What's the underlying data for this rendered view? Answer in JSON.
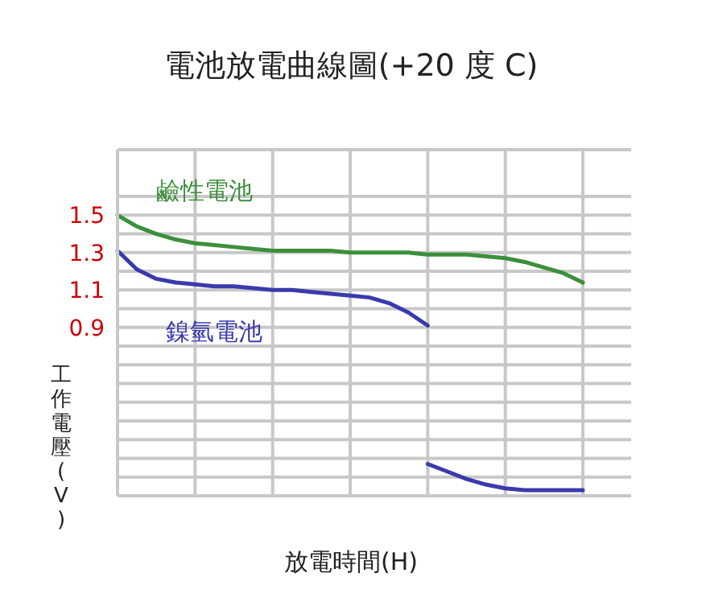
{
  "chart_data": {
    "type": "line",
    "title": "電池放電曲線圖(+20 度 C)",
    "xlabel": "放電時間(H)",
    "ylabel": "工作電壓(V)",
    "categories": [
      null,
      null,
      null,
      null,
      null,
      null,
      null,
      null,
      null,
      null,
      null,
      null,
      null,
      null,
      null,
      null,
      null,
      null,
      null,
      null,
      null,
      null,
      null,
      null,
      null
    ],
    "ylim": [
      0,
      1.85
    ],
    "yticks": [
      {
        "value": 0,
        "label": null
      },
      {
        "value": 0.1,
        "label": null
      },
      {
        "value": 0.2,
        "label": null
      },
      {
        "value": 0.3,
        "label": null
      },
      {
        "value": 0.4,
        "label": null
      },
      {
        "value": 0.5,
        "label": null
      },
      {
        "value": 0.6,
        "label": null
      },
      {
        "value": 0.7,
        "label": null
      },
      {
        "value": 0.8,
        "label": null
      },
      0.9,
      {
        "value": 1,
        "label": null
      },
      1.1,
      {
        "value": 1.2,
        "label": null
      },
      1.3,
      {
        "value": 1.4,
        "label": null
      },
      1.5,
      {
        "value": 1.6,
        "label": null
      }
    ],
    "grid": true,
    "marker": "none",
    "series": [
      {
        "name": "鹼性電池",
        "color": "#3c8f3c",
        "values": [
          1.5,
          1.44,
          1.4,
          1.37,
          1.35,
          1.34,
          1.33,
          1.32,
          1.31,
          1.31,
          1.31,
          1.31,
          1.3,
          1.3,
          1.3,
          1.3,
          1.29,
          1.29,
          1.29,
          1.28,
          1.27,
          1.25,
          1.22,
          1.19,
          1.14
        ]
      },
      {
        "name": "鎳氫電池",
        "color": "#3a3aad",
        "values": [
          1.31,
          1.21,
          1.16,
          1.14,
          1.13,
          1.12,
          1.12,
          1.11,
          1.1,
          1.1,
          1.09,
          1.08,
          1.07,
          1.06,
          1.03,
          0.98,
          0.91,
          null,
          null,
          null,
          null,
          null,
          null,
          null,
          null
        ]
      },
      {
        "color": "#3a3aad",
        "values": [
          null,
          null,
          null,
          null,
          null,
          null,
          null,
          null,
          null,
          null,
          null,
          null,
          null,
          null,
          null,
          null,
          0.17,
          0.13,
          0.09,
          0.06,
          0.04,
          0.03,
          0.03,
          0.03,
          0.03
        ]
      }
    ]
  }
}
